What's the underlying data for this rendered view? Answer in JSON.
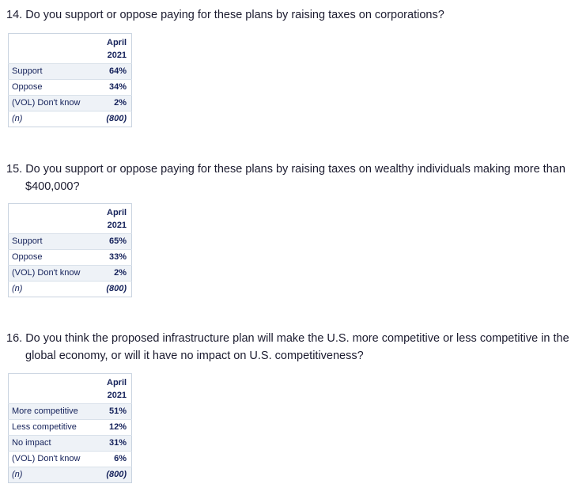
{
  "questions": [
    {
      "number": "14.",
      "text": "Do you support or oppose paying for these plans by raising taxes on corporations?",
      "header_line1": "April",
      "header_line2": "2021",
      "rows": [
        {
          "label": "Support",
          "value": "64%"
        },
        {
          "label": "Oppose",
          "value": "34%"
        },
        {
          "label": "(VOL) Don't know",
          "value": "2%"
        },
        {
          "label": "(n)",
          "value": "(800)"
        }
      ]
    },
    {
      "number": "15.",
      "text": "Do you support or oppose paying for these plans by raising taxes on wealthy individuals making more than $400,000?",
      "header_line1": "April",
      "header_line2": "2021",
      "rows": [
        {
          "label": "Support",
          "value": "65%"
        },
        {
          "label": "Oppose",
          "value": "33%"
        },
        {
          "label": "(VOL) Don't know",
          "value": "2%"
        },
        {
          "label": "(n)",
          "value": "(800)"
        }
      ]
    },
    {
      "number": "16.",
      "text": "Do you think the proposed infrastructure plan will make the U.S. more competitive or less competitive in the global economy, or will it have no impact on U.S. competitiveness?",
      "header_line1": "April",
      "header_line2": "2021",
      "rows": [
        {
          "label": "More competitive",
          "value": "51%"
        },
        {
          "label": "Less competitive",
          "value": "12%"
        },
        {
          "label": "No impact",
          "value": "31%"
        },
        {
          "label": "(VOL) Don't know",
          "value": "6%"
        },
        {
          "label": "(n)",
          "value": "(800)"
        }
      ]
    }
  ]
}
